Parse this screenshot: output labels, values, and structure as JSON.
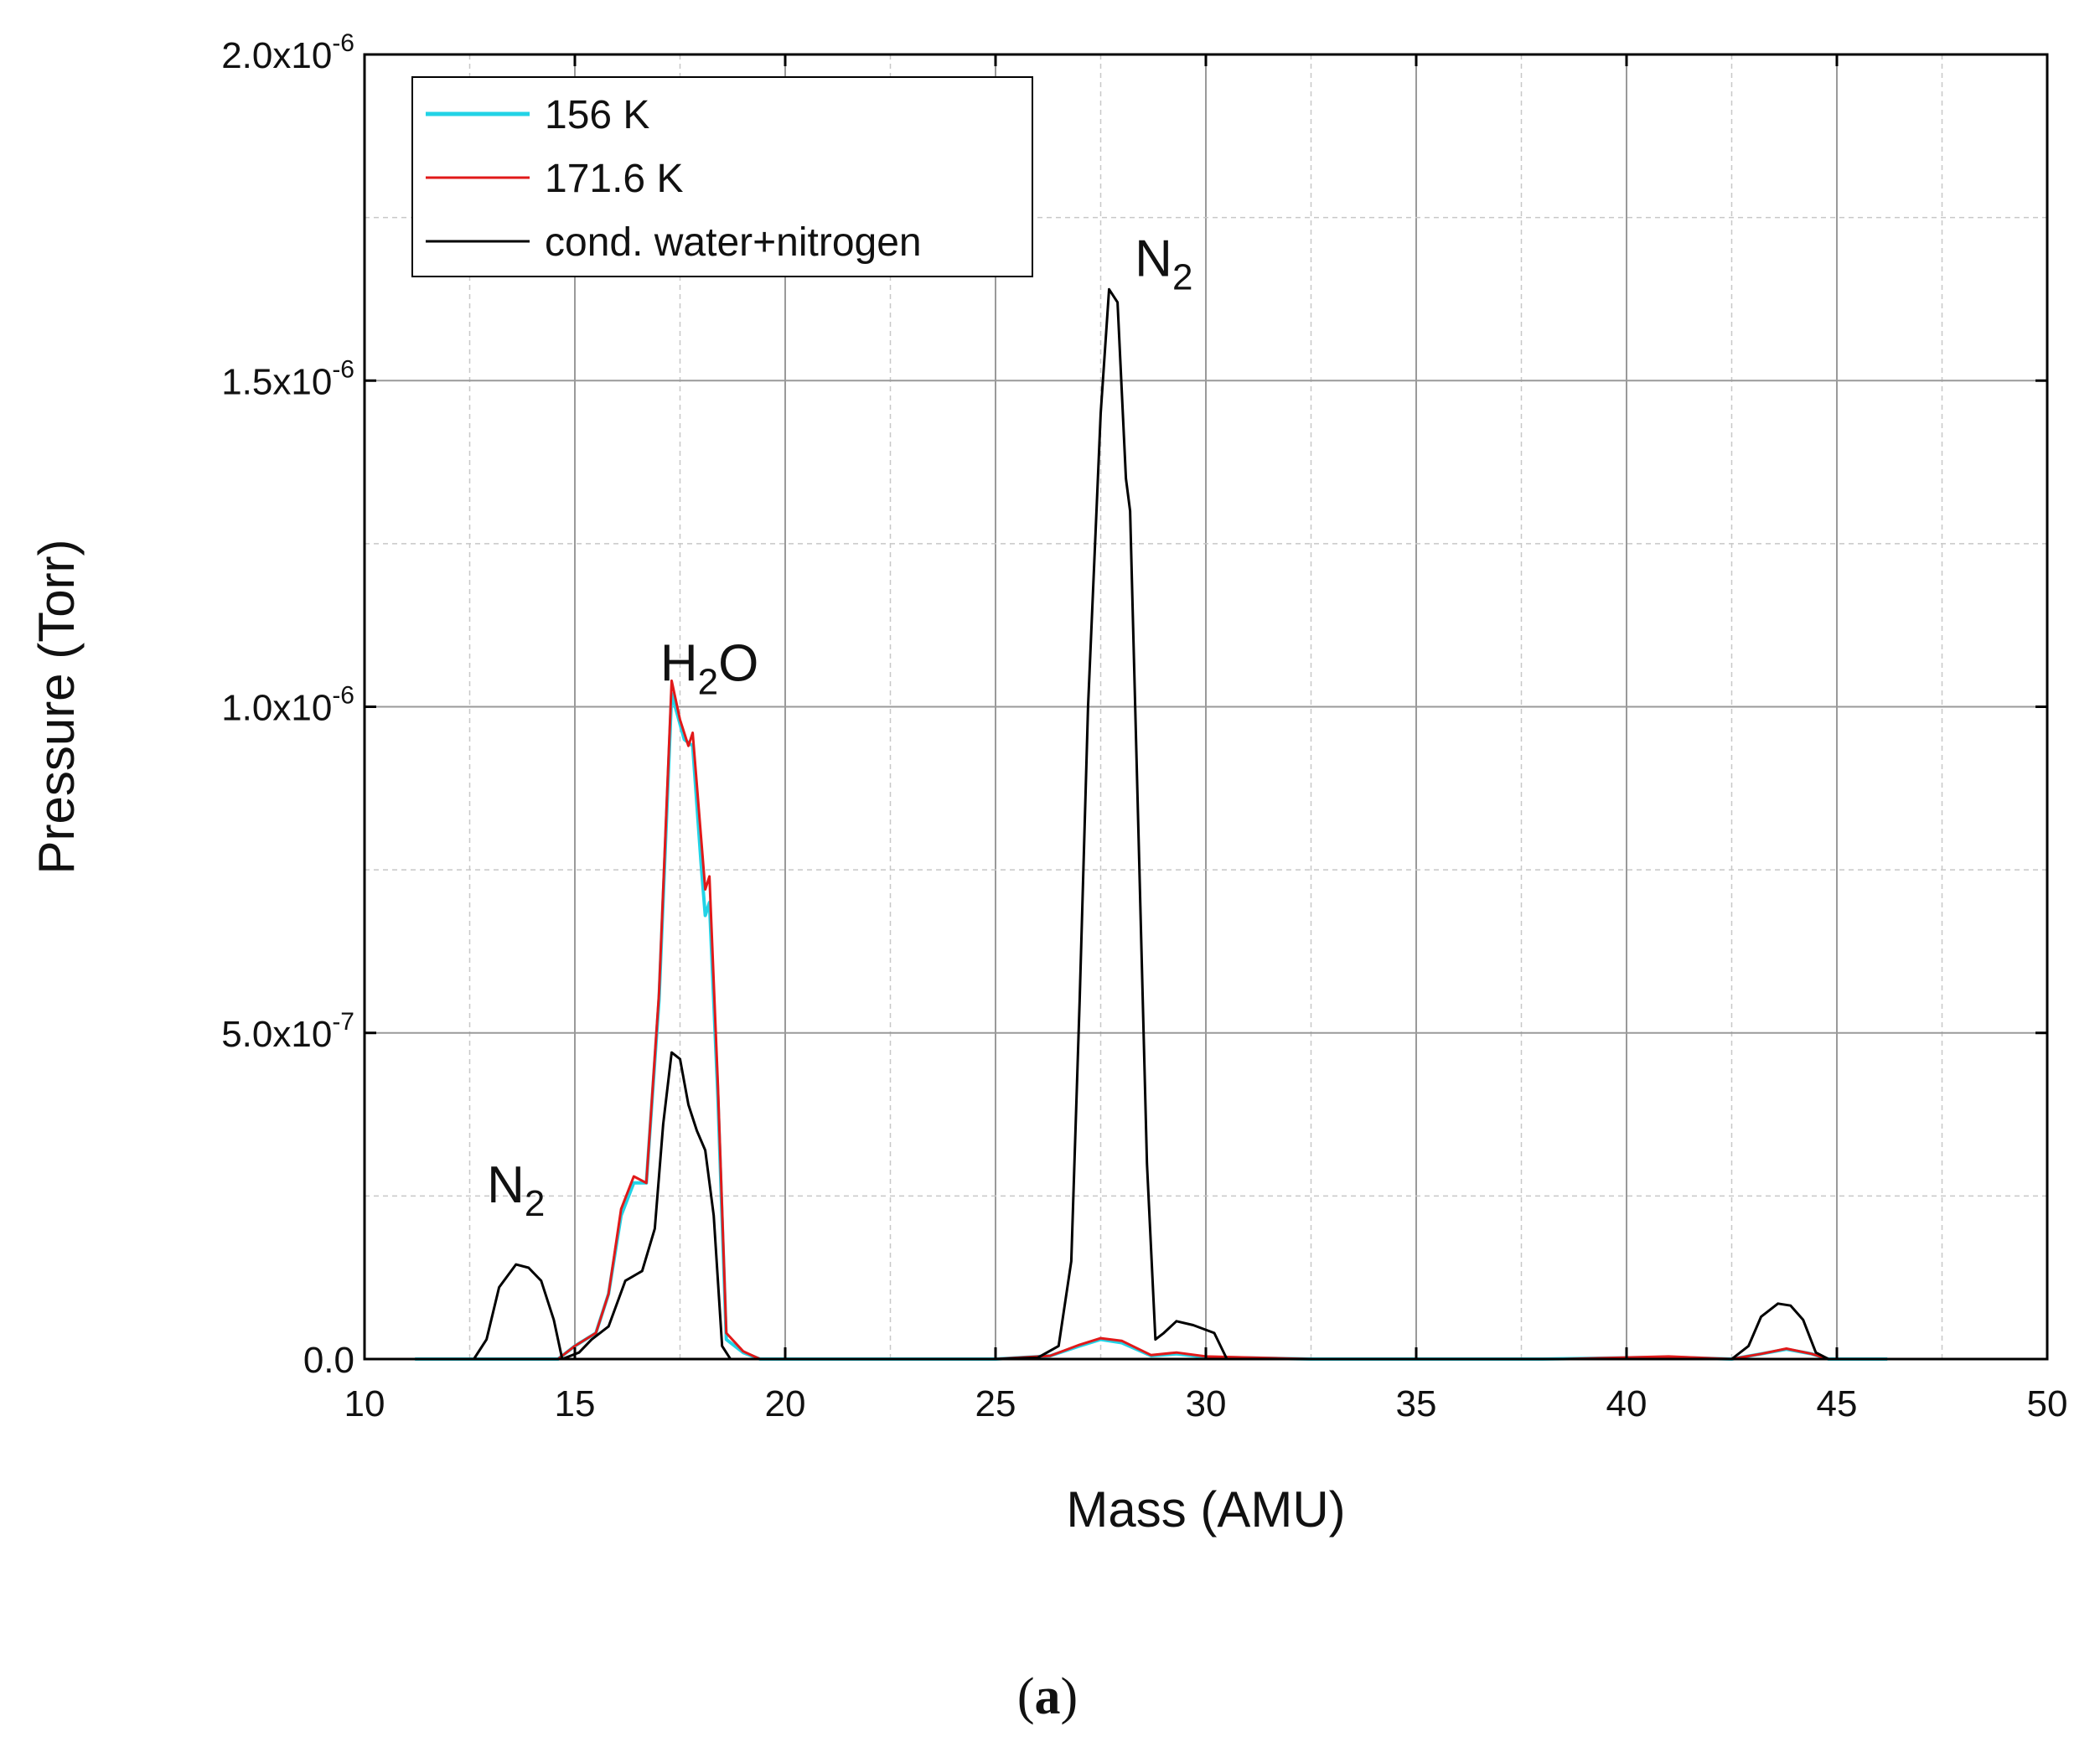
{
  "chart_data": {
    "type": "line",
    "xlabel": "Mass (AMU)",
    "ylabel": "Pressure (Torr)",
    "xlim": [
      10,
      50
    ],
    "ylim": [
      0,
      2e-06
    ],
    "x_ticks": [
      10,
      15,
      20,
      25,
      30,
      35,
      40,
      45,
      50
    ],
    "x_tick_labels": [
      "10",
      "15",
      "20",
      "25",
      "30",
      "35",
      "40",
      "45",
      "50"
    ],
    "y_ticks": [
      0,
      5e-07,
      1e-06,
      1.5e-06,
      2e-06
    ],
    "y_tick_labels": [
      {
        "mant": "0.0",
        "exp": ""
      },
      {
        "mant": "5.0x10",
        "exp": "-7"
      },
      {
        "mant": "1.0x10",
        "exp": "-6"
      },
      {
        "mant": "1.5x10",
        "exp": "-6"
      },
      {
        "mant": "2.0x10",
        "exp": "-6"
      }
    ],
    "grid": true,
    "legend_position": "top-left",
    "colors": {
      "s156": "#22d3e6",
      "s171": "#e11919",
      "cond": "#000000"
    },
    "series": [
      {
        "name": "156 K",
        "color": "#22d3e6",
        "points": [
          [
            11.2,
            0
          ],
          [
            12.5,
            0
          ],
          [
            14.6,
            0
          ],
          [
            15.0,
            2e-08
          ],
          [
            15.5,
            4e-08
          ],
          [
            15.8,
            1e-07
          ],
          [
            16.1,
            2.2e-07
          ],
          [
            16.4,
            2.7e-07
          ],
          [
            16.7,
            2.7e-07
          ],
          [
            17.0,
            5.5e-07
          ],
          [
            17.3,
            1.02e-06
          ],
          [
            17.6,
            9.5e-07
          ],
          [
            17.8,
            9.4e-07
          ],
          [
            18.0,
            7.6e-07
          ],
          [
            18.1,
            6.8e-07
          ],
          [
            18.2,
            7e-07
          ],
          [
            18.4,
            4e-07
          ],
          [
            18.6,
            3e-08
          ],
          [
            19.0,
            1e-08
          ],
          [
            19.4,
            0.0
          ],
          [
            20.3,
            0
          ],
          [
            25.0,
            0
          ],
          [
            26.3,
            5e-09
          ],
          [
            27.0,
            2e-08
          ],
          [
            27.5,
            3e-08
          ],
          [
            28.0,
            2.5e-08
          ],
          [
            28.7,
            5e-09
          ],
          [
            29.3,
            8e-09
          ],
          [
            30.0,
            3e-09
          ],
          [
            32.5,
            0
          ],
          [
            38.0,
            0
          ],
          [
            41.0,
            3e-09
          ],
          [
            42.5,
            0
          ],
          [
            43.2,
            8e-09
          ],
          [
            43.8,
            1.5e-08
          ],
          [
            44.4,
            8e-09
          ],
          [
            44.8,
            0
          ],
          [
            46.2,
            0
          ]
        ]
      },
      {
        "name": "171.6 K",
        "color": "#e11919",
        "points": [
          [
            12.8,
            0
          ],
          [
            14.6,
            0
          ],
          [
            15.0,
            2e-08
          ],
          [
            15.5,
            4e-08
          ],
          [
            15.8,
            1e-07
          ],
          [
            16.1,
            2.3e-07
          ],
          [
            16.4,
            2.8e-07
          ],
          [
            16.7,
            2.7e-07
          ],
          [
            17.0,
            5.6e-07
          ],
          [
            17.3,
            1.04e-06
          ],
          [
            17.5,
            9.8e-07
          ],
          [
            17.7,
            9.4e-07
          ],
          [
            17.8,
            9.6e-07
          ],
          [
            18.0,
            8e-07
          ],
          [
            18.1,
            7.2e-07
          ],
          [
            18.2,
            7.4e-07
          ],
          [
            18.4,
            4.2e-07
          ],
          [
            18.6,
            4e-08
          ],
          [
            19.0,
            1.2e-08
          ],
          [
            19.4,
            0.0
          ],
          [
            20.0,
            0
          ],
          [
            25.0,
            0
          ],
          [
            26.3,
            5e-09
          ],
          [
            27.0,
            2.2e-08
          ],
          [
            27.5,
            3.2e-08
          ],
          [
            28.0,
            2.8e-08
          ],
          [
            28.7,
            6e-09
          ],
          [
            29.3,
            1e-08
          ],
          [
            30.0,
            4e-09
          ],
          [
            32.5,
            0
          ],
          [
            38.5,
            0
          ],
          [
            41.0,
            4e-09
          ],
          [
            42.5,
            0
          ],
          [
            43.2,
            8e-09
          ],
          [
            43.8,
            1.6e-08
          ],
          [
            44.4,
            8e-09
          ],
          [
            44.8,
            0
          ]
        ]
      },
      {
        "name": "cond. water+nitrogen",
        "color": "#000000",
        "points": [
          [
            11.5,
            0
          ],
          [
            12.6,
            0
          ],
          [
            12.9,
            3e-08
          ],
          [
            13.2,
            1.1e-07
          ],
          [
            13.6,
            1.45e-07
          ],
          [
            13.9,
            1.4e-07
          ],
          [
            14.2,
            1.2e-07
          ],
          [
            14.5,
            6e-08
          ],
          [
            14.7,
            0.0
          ],
          [
            15.1,
            1e-08
          ],
          [
            15.4,
            3e-08
          ],
          [
            15.8,
            5e-08
          ],
          [
            16.2,
            1.2e-07
          ],
          [
            16.6,
            1.35e-07
          ],
          [
            16.9,
            2e-07
          ],
          [
            17.1,
            3.6e-07
          ],
          [
            17.3,
            4.7e-07
          ],
          [
            17.5,
            4.6e-07
          ],
          [
            17.7,
            3.9e-07
          ],
          [
            17.9,
            3.5e-07
          ],
          [
            18.1,
            3.2e-07
          ],
          [
            18.3,
            2.2e-07
          ],
          [
            18.5,
            2e-08
          ],
          [
            18.7,
            0.0
          ],
          [
            19.5,
            0
          ],
          [
            25.0,
            0
          ],
          [
            26.0,
            2e-09
          ],
          [
            26.5,
            2e-08
          ],
          [
            26.8,
            1.5e-07
          ],
          [
            27.0,
            5.5e-07
          ],
          [
            27.2,
            1e-06
          ],
          [
            27.5,
            1.45e-06
          ],
          [
            27.7,
            1.64e-06
          ],
          [
            27.9,
            1.62e-06
          ],
          [
            28.1,
            1.35e-06
          ],
          [
            28.2,
            1.3e-06
          ],
          [
            28.4,
            8e-07
          ],
          [
            28.6,
            3e-07
          ],
          [
            28.8,
            3e-08
          ],
          [
            29.0,
            4e-08
          ],
          [
            29.3,
            5.8e-08
          ],
          [
            29.7,
            5.2e-08
          ],
          [
            30.2,
            4e-08
          ],
          [
            30.5,
            0.0
          ],
          [
            32.5,
            0
          ],
          [
            42.5,
            0
          ],
          [
            42.9,
            2e-08
          ],
          [
            43.2,
            6.5e-08
          ],
          [
            43.6,
            8.5e-08
          ],
          [
            43.9,
            8.2e-08
          ],
          [
            44.2,
            6e-08
          ],
          [
            44.5,
            1e-08
          ],
          [
            44.8,
            0
          ],
          [
            46.0,
            0
          ]
        ]
      }
    ],
    "annotations": [
      {
        "id": "n2-low",
        "base": "N",
        "sub": "2",
        "x": 13.6,
        "y": 2.4e-07
      },
      {
        "id": "h2o",
        "base": "H",
        "sub": "2",
        "tail": "O",
        "x": 18.2,
        "y": 1.04e-06
      },
      {
        "id": "n2-high",
        "base": "N",
        "sub": "2",
        "x": 29.0,
        "y": 1.66e-06
      }
    ]
  },
  "caption": {
    "open": "(",
    "letter": "a",
    "close": ")"
  }
}
